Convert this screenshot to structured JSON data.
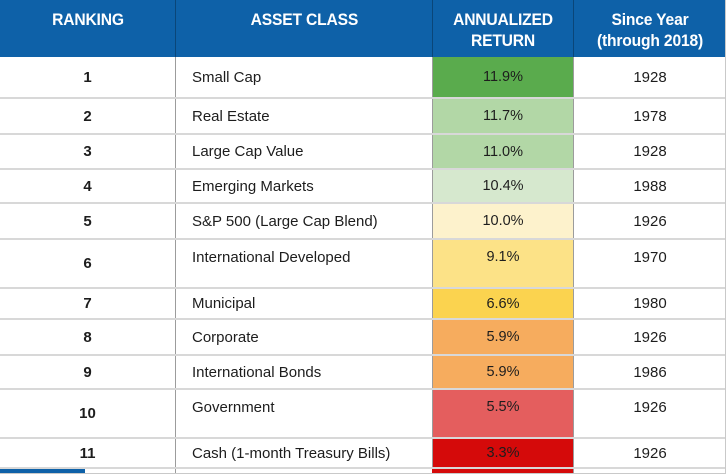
{
  "chart_data": {
    "type": "table",
    "title": "Asset class annualized returns ranking (through 2018)",
    "columns": [
      "RANKING",
      "ASSET CLASS",
      "ANNUALIZED RETURN",
      "Since Year (through 2018)"
    ],
    "rows": [
      {
        "ranking": "1",
        "asset": "Small Cap",
        "return": "11.9%",
        "return_value": 11.9,
        "year": "1928",
        "color": "#5AAB4D"
      },
      {
        "ranking": "2",
        "asset": "Real Estate",
        "return": "11.7%",
        "return_value": 11.7,
        "year": "1978",
        "color": "#B2D7A6"
      },
      {
        "ranking": "3",
        "asset": "Large Cap Value",
        "return": "11.0%",
        "return_value": 11.0,
        "year": "1928",
        "color": "#B2D7A6"
      },
      {
        "ranking": "4",
        "asset": "Emerging Markets",
        "return": "10.4%",
        "return_value": 10.4,
        "year": "1988",
        "color": "#D6E8CE"
      },
      {
        "ranking": "5",
        "asset": "S&P 500 (Large Cap Blend)",
        "return": "10.0%",
        "return_value": 10.0,
        "year": "1926",
        "color": "#FDF2CC"
      },
      {
        "ranking": "6",
        "asset": "International Developed",
        "return": "9.1%",
        "return_value": 9.1,
        "year": "1970",
        "color": "#FCE287"
      },
      {
        "ranking": "7",
        "asset": "Municipal",
        "return": "6.6%",
        "return_value": 6.6,
        "year": "1980",
        "color": "#FBD34F"
      },
      {
        "ranking": "8",
        "asset": "Corporate",
        "return": "5.9%",
        "return_value": 5.9,
        "year": "1926",
        "color": "#F6AC5E"
      },
      {
        "ranking": "9",
        "asset": "International Bonds",
        "return": "5.9%",
        "return_value": 5.9,
        "year": "1986",
        "color": "#F6AC5E"
      },
      {
        "ranking": "10",
        "asset": "Government",
        "return": "5.5%",
        "return_value": 5.5,
        "year": "1926",
        "color": "#E45E5E"
      },
      {
        "ranking": "11",
        "asset": "Cash (1-month Treasury Bills)",
        "return": "3.3%",
        "return_value": 3.3,
        "year": "1926",
        "color": "#D50A0A"
      }
    ]
  },
  "header": {
    "col_ranking": "RANKING",
    "col_asset": "ASSET CLASS",
    "col_return": "ANNUALIZED RETURN",
    "col_year": "Since Year (through 2018)"
  },
  "colors": {
    "header_bg": "#0E61A8",
    "header_text": "#ffffff",
    "body_text": "#1d1d1d",
    "grid_horizontal": "#D8D8D8",
    "grid_vertical": "#9C9C9C",
    "bottom_fragment_blue": "#0E61A8",
    "bottom_stub_red": "#D50A0A"
  }
}
